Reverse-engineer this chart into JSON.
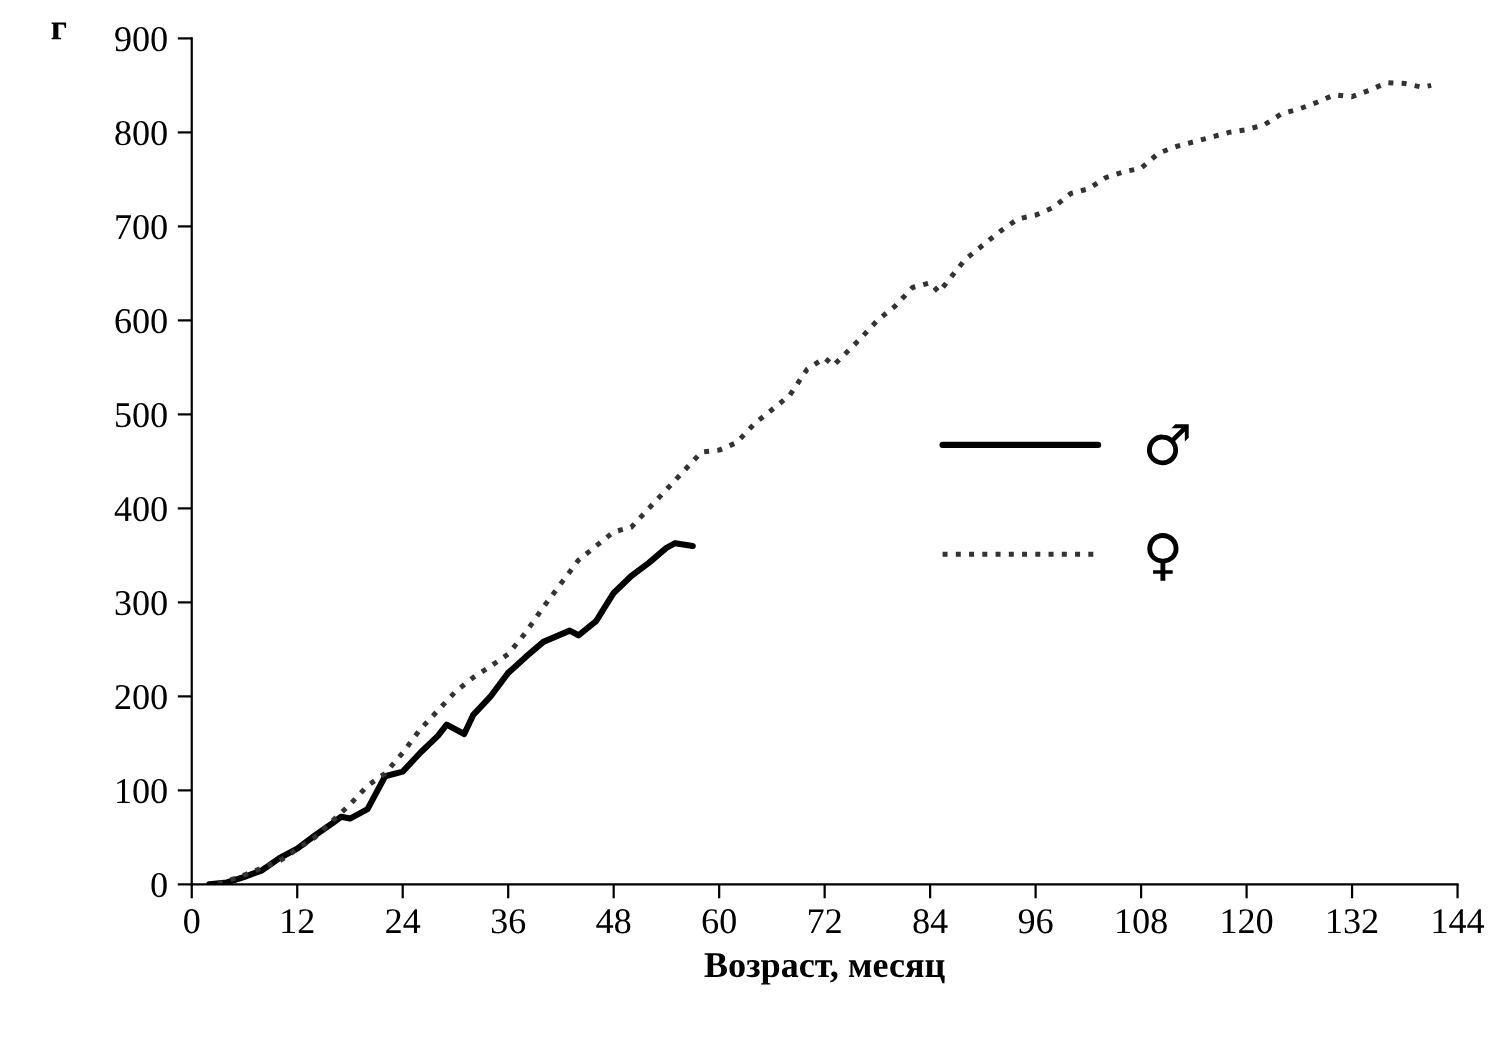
{
  "chart_data": {
    "type": "line",
    "xlabel": "Возраст, месяц",
    "ylabel": "г",
    "xlim": [
      0,
      144
    ],
    "ylim": [
      0,
      900
    ],
    "xticks": [
      0,
      12,
      24,
      36,
      48,
      60,
      72,
      84,
      96,
      108,
      120,
      132,
      144
    ],
    "yticks": [
      0,
      100,
      200,
      300,
      400,
      500,
      600,
      700,
      800,
      900
    ],
    "grid": false,
    "legend": "right",
    "marker": "none",
    "series": [
      {
        "name": "♂",
        "color": "#000000",
        "line_style": "solid",
        "x": [
          2,
          4,
          6,
          8,
          10,
          12,
          14,
          16,
          17,
          18,
          20,
          22,
          24,
          26,
          28,
          29,
          31,
          32,
          34,
          36,
          38,
          40,
          42,
          43,
          44,
          46,
          48,
          50,
          52,
          54,
          55,
          57
        ],
        "values": [
          0,
          2,
          8,
          15,
          28,
          38,
          52,
          65,
          72,
          70,
          80,
          115,
          120,
          140,
          158,
          170,
          160,
          180,
          200,
          225,
          242,
          258,
          266,
          270,
          265,
          280,
          310,
          328,
          342,
          358,
          363,
          360
        ]
      },
      {
        "name": "♀",
        "color": "#333333",
        "line_style": "dotted",
        "x": [
          3,
          6,
          10,
          14,
          18,
          20,
          22,
          24,
          26,
          28,
          30,
          32,
          34,
          36,
          38,
          40,
          42,
          44,
          46,
          48,
          50,
          52,
          54,
          56,
          58,
          60,
          62,
          64,
          66,
          68,
          70,
          72,
          73,
          76,
          78,
          80,
          82,
          84,
          85,
          88,
          90,
          92,
          94,
          96,
          98,
          100,
          102,
          104,
          106,
          108,
          110,
          112,
          114,
          116,
          118,
          120,
          122,
          124,
          126,
          128,
          130,
          132,
          134,
          136,
          138,
          140,
          141
        ],
        "values": [
          0,
          10,
          25,
          50,
          85,
          105,
          118,
          140,
          165,
          185,
          205,
          220,
          232,
          245,
          268,
          295,
          320,
          345,
          360,
          375,
          380,
          400,
          420,
          440,
          460,
          462,
          470,
          490,
          505,
          520,
          548,
          560,
          552,
          580,
          600,
          615,
          635,
          640,
          630,
          665,
          680,
          695,
          708,
          712,
          720,
          735,
          740,
          752,
          758,
          762,
          778,
          785,
          790,
          795,
          800,
          803,
          808,
          820,
          825,
          832,
          840,
          838,
          845,
          853,
          852,
          848,
          850
        ]
      }
    ]
  }
}
